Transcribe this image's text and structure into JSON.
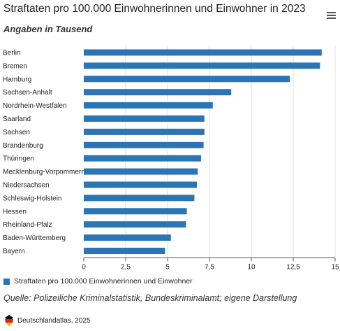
{
  "header": {
    "title": "Straftaten pro 100.000 Einwohnerinnen und Einwohner in 2023",
    "subtitle": "Angaben in Tausend",
    "menu_icon": "hamburger-menu-icon"
  },
  "legend": {
    "label": "Straftaten pro 100.000 Einwohnerinnen und Einwohner"
  },
  "footer": {
    "source": "Quelle: Polizeiliche Kriminalstatistik, Bundeskriminalamt; eigene Darstellung",
    "credit": "Deutschlandatlas, 2025",
    "logo_icon": "deutschlandatlas-logo-icon"
  },
  "colors": {
    "bar": "#2b75b5",
    "grid": "#e1e1e1",
    "axis": "#555555"
  },
  "chart_data": {
    "type": "bar",
    "orientation": "horizontal",
    "categories": [
      "Berlin",
      "Bremen",
      "Hamburg",
      "Sachsen-Anhalt",
      "Nordrhein-Westfalen",
      "Saarland",
      "Sachsen",
      "Brandenburg",
      "Thüringen",
      "Mecklenburg-Vorpommern",
      "Niedersachsen",
      "Schleswig-Holstein",
      "Hessen",
      "Rheinland-Pfalz",
      "Baden-Württemberg",
      "Bayern"
    ],
    "series": [
      {
        "name": "Straftaten pro 100.000 Einwohnerinnen und Einwohner",
        "values": [
          14.2,
          14.1,
          12.3,
          8.8,
          7.7,
          7.2,
          7.2,
          7.15,
          7.0,
          6.8,
          6.75,
          6.6,
          6.15,
          6.1,
          5.2,
          4.85
        ]
      }
    ],
    "xlim": [
      0,
      15
    ],
    "xticks": [
      "0",
      "2,5",
      "5",
      "7,5",
      "10",
      "12,5",
      "15"
    ],
    "xtick_values": [
      0,
      2.5,
      5,
      7.5,
      10,
      12.5,
      15
    ],
    "grid": true,
    "legend_position": "bottom-left"
  }
}
